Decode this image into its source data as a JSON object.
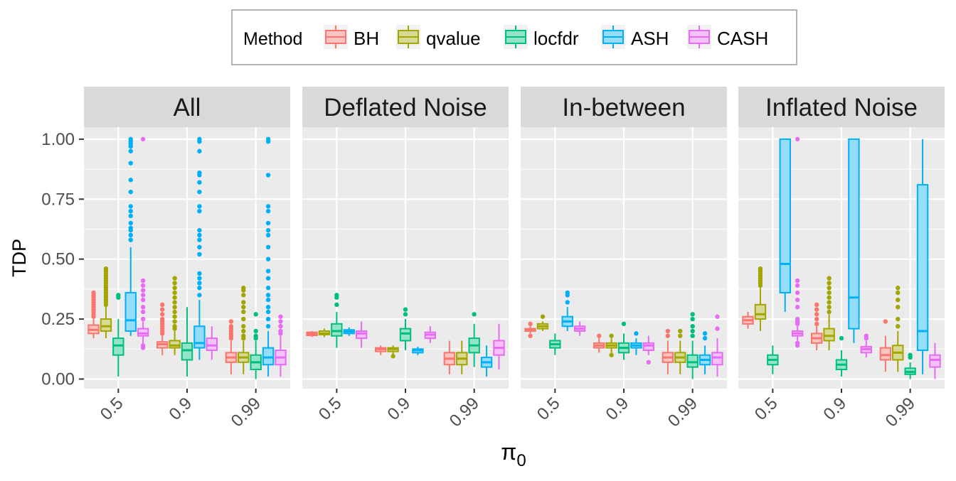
{
  "chart_data": {
    "type": "box",
    "legend": {
      "title": "Method",
      "position": "top",
      "entries": [
        {
          "name": "BH",
          "color": "#F8766D"
        },
        {
          "name": "qvalue",
          "color": "#A3A500"
        },
        {
          "name": "locfdr",
          "color": "#00BF7D"
        },
        {
          "name": "ASH",
          "color": "#00B0F6"
        },
        {
          "name": "CASH",
          "color": "#E76BF3"
        }
      ]
    },
    "ylabel": "TDP",
    "xlabel_symbol": "π",
    "xlabel_subscript": "0",
    "ylim": [
      -0.04,
      1.05
    ],
    "yticks": [
      "0.00",
      "0.25",
      "0.50",
      "0.75",
      "1.00"
    ],
    "ytick_values": [
      0,
      0.25,
      0.5,
      0.75,
      1.0
    ],
    "x_categories": [
      "0.5",
      "0.9",
      "0.99"
    ],
    "grid": true,
    "panels": [
      {
        "title": "All",
        "boxes": [
          {
            "x": "0.5",
            "method": "BH",
            "min": 0.17,
            "q1": 0.19,
            "median": 0.205,
            "q3": 0.225,
            "max": 0.25,
            "outliers": [
              0.26,
              0.27,
              0.28,
              0.29,
              0.3,
              0.31,
              0.32,
              0.33,
              0.34,
              0.35,
              0.36
            ]
          },
          {
            "x": "0.5",
            "method": "qvalue",
            "min": 0.17,
            "q1": 0.2,
            "median": 0.22,
            "q3": 0.25,
            "max": 0.3,
            "outliers": [
              0.31,
              0.32,
              0.33,
              0.34,
              0.35,
              0.36,
              0.37,
              0.38,
              0.39,
              0.4,
              0.41,
              0.42,
              0.43,
              0.44,
              0.45,
              0.46
            ]
          },
          {
            "x": "0.5",
            "method": "locfdr",
            "min": 0.01,
            "q1": 0.1,
            "median": 0.14,
            "q3": 0.17,
            "max": 0.25,
            "outliers": [
              0.34,
              0.35
            ]
          },
          {
            "x": "0.5",
            "method": "ASH",
            "min": 0.18,
            "q1": 0.2,
            "median": 0.245,
            "q3": 0.36,
            "max": 0.55,
            "outliers": [
              0.58,
              0.6,
              0.62,
              0.63,
              0.65,
              0.68,
              0.7,
              0.72,
              0.78,
              0.83,
              0.9,
              0.95,
              0.97,
              0.98,
              0.99,
              1.0
            ]
          },
          {
            "x": "0.5",
            "method": "CASH",
            "min": 0.13,
            "q1": 0.18,
            "median": 0.19,
            "q3": 0.21,
            "max": 0.24,
            "outliers": [
              0.13,
              0.14,
              0.25,
              0.28,
              0.3,
              0.33,
              0.35,
              0.37,
              0.39,
              0.41,
              1.0
            ]
          },
          {
            "x": "0.9",
            "method": "BH",
            "min": 0.1,
            "q1": 0.13,
            "median": 0.145,
            "q3": 0.155,
            "max": 0.18,
            "outliers": [
              0.19,
              0.2,
              0.21,
              0.22,
              0.23,
              0.24,
              0.25,
              0.27,
              0.29,
              0.31
            ]
          },
          {
            "x": "0.9",
            "method": "qvalue",
            "min": 0.1,
            "q1": 0.13,
            "median": 0.14,
            "q3": 0.16,
            "max": 0.2,
            "outliers": [
              0.21,
              0.22,
              0.24,
              0.26,
              0.28,
              0.3,
              0.32,
              0.34,
              0.36,
              0.38,
              0.4,
              0.42
            ]
          },
          {
            "x": "0.9",
            "method": "locfdr",
            "min": 0.01,
            "q1": 0.08,
            "median": 0.12,
            "q3": 0.15,
            "max": 0.3,
            "outliers": []
          },
          {
            "x": "0.9",
            "method": "ASH",
            "min": 0.08,
            "q1": 0.13,
            "median": 0.15,
            "q3": 0.22,
            "max": 0.33,
            "outliers": [
              0.35,
              0.38,
              0.4,
              0.42,
              0.44,
              0.52,
              0.55,
              0.58,
              0.6,
              0.62,
              0.7,
              0.72,
              0.78,
              0.82,
              0.85,
              0.86,
              0.95,
              0.99,
              1.0
            ]
          },
          {
            "x": "0.9",
            "method": "CASH",
            "min": 0.08,
            "q1": 0.12,
            "median": 0.14,
            "q3": 0.17,
            "max": 0.22,
            "outliers": []
          },
          {
            "x": "0.99",
            "method": "BH",
            "min": 0.02,
            "q1": 0.07,
            "median": 0.09,
            "q3": 0.11,
            "max": 0.16,
            "outliers": [
              0.17,
              0.18,
              0.19,
              0.2,
              0.21,
              0.22,
              0.24
            ]
          },
          {
            "x": "0.99",
            "method": "qvalue",
            "min": 0.02,
            "q1": 0.07,
            "median": 0.09,
            "q3": 0.11,
            "max": 0.16,
            "outliers": [
              0.17,
              0.18,
              0.2,
              0.22,
              0.25,
              0.28,
              0.3,
              0.32,
              0.35,
              0.37,
              0.38
            ]
          },
          {
            "x": "0.99",
            "method": "locfdr",
            "min": 0.0,
            "q1": 0.04,
            "median": 0.07,
            "q3": 0.1,
            "max": 0.16,
            "outliers": [
              0.17,
              0.18,
              0.2,
              0.27
            ]
          },
          {
            "x": "0.99",
            "method": "ASH",
            "min": 0.01,
            "q1": 0.06,
            "median": 0.09,
            "q3": 0.13,
            "max": 0.2,
            "outliers": [
              0.22,
              0.25,
              0.28,
              0.3,
              0.33,
              0.35,
              0.38,
              0.42,
              0.45,
              0.5,
              0.55,
              0.6,
              0.62,
              0.65,
              0.7,
              0.72,
              0.85,
              0.99,
              1.0
            ]
          },
          {
            "x": "0.99",
            "method": "CASH",
            "min": 0.01,
            "q1": 0.06,
            "median": 0.09,
            "q3": 0.12,
            "max": 0.18,
            "outliers": [
              0.19,
              0.2,
              0.22,
              0.24,
              0.26
            ]
          }
        ]
      },
      {
        "title": "Deflated Noise",
        "boxes": [
          {
            "x": "0.5",
            "method": "BH",
            "min": 0.175,
            "q1": 0.182,
            "median": 0.188,
            "q3": 0.195,
            "max": 0.2,
            "outliers": []
          },
          {
            "x": "0.5",
            "method": "qvalue",
            "min": 0.175,
            "q1": 0.185,
            "median": 0.19,
            "q3": 0.2,
            "max": 0.21,
            "outliers": []
          },
          {
            "x": "0.5",
            "method": "locfdr",
            "min": 0.13,
            "q1": 0.18,
            "median": 0.2,
            "q3": 0.23,
            "max": 0.28,
            "outliers": [
              0.31,
              0.34,
              0.35
            ]
          },
          {
            "x": "0.5",
            "method": "ASH",
            "min": 0.18,
            "q1": 0.19,
            "median": 0.198,
            "q3": 0.205,
            "max": 0.215,
            "outliers": []
          },
          {
            "x": "0.5",
            "method": "CASH",
            "min": 0.13,
            "q1": 0.17,
            "median": 0.19,
            "q3": 0.2,
            "max": 0.24,
            "outliers": []
          },
          {
            "x": "0.9",
            "method": "BH",
            "min": 0.1,
            "q1": 0.115,
            "median": 0.125,
            "q3": 0.13,
            "max": 0.14,
            "outliers": []
          },
          {
            "x": "0.9",
            "method": "qvalue",
            "min": 0.1,
            "q1": 0.115,
            "median": 0.125,
            "q3": 0.13,
            "max": 0.14,
            "outliers": [
              0.095
            ]
          },
          {
            "x": "0.9",
            "method": "locfdr",
            "min": 0.12,
            "q1": 0.16,
            "median": 0.19,
            "q3": 0.21,
            "max": 0.25,
            "outliers": [
              0.27,
              0.29
            ]
          },
          {
            "x": "0.9",
            "method": "ASH",
            "min": 0.1,
            "q1": 0.11,
            "median": 0.12,
            "q3": 0.125,
            "max": 0.135,
            "outliers": []
          },
          {
            "x": "0.9",
            "method": "CASH",
            "min": 0.15,
            "q1": 0.17,
            "median": 0.185,
            "q3": 0.195,
            "max": 0.22,
            "outliers": []
          },
          {
            "x": "0.99",
            "method": "BH",
            "min": 0.02,
            "q1": 0.06,
            "median": 0.085,
            "q3": 0.11,
            "max": 0.16,
            "outliers": []
          },
          {
            "x": "0.99",
            "method": "qvalue",
            "min": 0.02,
            "q1": 0.06,
            "median": 0.085,
            "q3": 0.11,
            "max": 0.16,
            "outliers": []
          },
          {
            "x": "0.99",
            "method": "locfdr",
            "min": 0.05,
            "q1": 0.11,
            "median": 0.14,
            "q3": 0.17,
            "max": 0.23,
            "outliers": [
              0.27
            ]
          },
          {
            "x": "0.99",
            "method": "ASH",
            "min": 0.01,
            "q1": 0.05,
            "median": 0.07,
            "q3": 0.09,
            "max": 0.14,
            "outliers": []
          },
          {
            "x": "0.99",
            "method": "CASH",
            "min": 0.04,
            "q1": 0.1,
            "median": 0.13,
            "q3": 0.16,
            "max": 0.23,
            "outliers": []
          }
        ]
      },
      {
        "title": "In-between",
        "boxes": [
          {
            "x": "0.5",
            "method": "BH",
            "min": 0.19,
            "q1": 0.2,
            "median": 0.205,
            "q3": 0.21,
            "max": 0.22,
            "outliers": [
              0.18,
              0.23
            ]
          },
          {
            "x": "0.5",
            "method": "qvalue",
            "min": 0.2,
            "q1": 0.21,
            "median": 0.22,
            "q3": 0.23,
            "max": 0.24,
            "outliers": [
              0.26
            ]
          },
          {
            "x": "0.5",
            "method": "locfdr",
            "min": 0.1,
            "q1": 0.13,
            "median": 0.145,
            "q3": 0.16,
            "max": 0.19,
            "outliers": []
          },
          {
            "x": "0.5",
            "method": "ASH",
            "min": 0.2,
            "q1": 0.22,
            "median": 0.24,
            "q3": 0.26,
            "max": 0.3,
            "outliers": [
              0.32,
              0.35,
              0.36
            ]
          },
          {
            "x": "0.5",
            "method": "CASH",
            "min": 0.18,
            "q1": 0.2,
            "median": 0.21,
            "q3": 0.22,
            "max": 0.24,
            "outliers": []
          },
          {
            "x": "0.9",
            "method": "BH",
            "min": 0.11,
            "q1": 0.13,
            "median": 0.14,
            "q3": 0.15,
            "max": 0.17,
            "outliers": [
              0.18
            ]
          },
          {
            "x": "0.9",
            "method": "qvalue",
            "min": 0.11,
            "q1": 0.13,
            "median": 0.14,
            "q3": 0.15,
            "max": 0.17,
            "outliers": [
              0.1,
              0.18
            ]
          },
          {
            "x": "0.9",
            "method": "locfdr",
            "min": 0.08,
            "q1": 0.11,
            "median": 0.13,
            "q3": 0.15,
            "max": 0.19,
            "outliers": [
              0.23
            ]
          },
          {
            "x": "0.9",
            "method": "ASH",
            "min": 0.1,
            "q1": 0.13,
            "median": 0.14,
            "q3": 0.15,
            "max": 0.17,
            "outliers": [
              0.19
            ]
          },
          {
            "x": "0.9",
            "method": "CASH",
            "min": 0.1,
            "q1": 0.12,
            "median": 0.14,
            "q3": 0.15,
            "max": 0.18,
            "outliers": [
              0.07
            ]
          },
          {
            "x": "0.99",
            "method": "BH",
            "min": 0.02,
            "q1": 0.07,
            "median": 0.09,
            "q3": 0.11,
            "max": 0.16,
            "outliers": [
              0.18,
              0.2
            ]
          },
          {
            "x": "0.99",
            "method": "qvalue",
            "min": 0.02,
            "q1": 0.07,
            "median": 0.09,
            "q3": 0.11,
            "max": 0.16,
            "outliers": [
              0.18,
              0.2
            ]
          },
          {
            "x": "0.99",
            "method": "locfdr",
            "min": 0.0,
            "q1": 0.05,
            "median": 0.07,
            "q3": 0.1,
            "max": 0.16,
            "outliers": [
              0.18,
              0.2,
              0.22,
              0.25,
              0.27
            ]
          },
          {
            "x": "0.99",
            "method": "ASH",
            "min": 0.02,
            "q1": 0.06,
            "median": 0.08,
            "q3": 0.1,
            "max": 0.14,
            "outliers": [
              0.17,
              0.19
            ]
          },
          {
            "x": "0.99",
            "method": "CASH",
            "min": 0.01,
            "q1": 0.06,
            "median": 0.09,
            "q3": 0.11,
            "max": 0.17,
            "outliers": [
              0.21,
              0.26
            ]
          }
        ]
      },
      {
        "title": "Inflated Noise",
        "boxes": [
          {
            "x": "0.5",
            "method": "BH",
            "min": 0.21,
            "q1": 0.23,
            "median": 0.245,
            "q3": 0.26,
            "max": 0.28,
            "outliers": []
          },
          {
            "x": "0.5",
            "method": "qvalue",
            "min": 0.2,
            "q1": 0.25,
            "median": 0.27,
            "q3": 0.31,
            "max": 0.38,
            "outliers": [
              0.39,
              0.4,
              0.41,
              0.42,
              0.43,
              0.44,
              0.45,
              0.46
            ]
          },
          {
            "x": "0.5",
            "method": "locfdr",
            "min": 0.02,
            "q1": 0.06,
            "median": 0.08,
            "q3": 0.1,
            "max": 0.14,
            "outliers": []
          },
          {
            "x": "0.5",
            "method": "ASH",
            "min": 0.28,
            "q1": 0.36,
            "median": 0.48,
            "q3": 1.0,
            "max": 1.0,
            "outliers": []
          },
          {
            "x": "0.5",
            "method": "CASH",
            "min": 0.16,
            "q1": 0.18,
            "median": 0.19,
            "q3": 0.2,
            "max": 0.22,
            "outliers": [
              0.14,
              0.15,
              0.23,
              0.24,
              0.25,
              0.3,
              0.33,
              0.36,
              0.39,
              0.41,
              1.0
            ]
          },
          {
            "x": "0.9",
            "method": "BH",
            "min": 0.12,
            "q1": 0.15,
            "median": 0.17,
            "q3": 0.19,
            "max": 0.22,
            "outliers": [
              0.23,
              0.25,
              0.27,
              0.29,
              0.31
            ]
          },
          {
            "x": "0.9",
            "method": "qvalue",
            "min": 0.12,
            "q1": 0.16,
            "median": 0.18,
            "q3": 0.21,
            "max": 0.27,
            "outliers": [
              0.28,
              0.3,
              0.32,
              0.34,
              0.36,
              0.38,
              0.4,
              0.42
            ]
          },
          {
            "x": "0.9",
            "method": "locfdr",
            "min": 0.01,
            "q1": 0.04,
            "median": 0.06,
            "q3": 0.08,
            "max": 0.12,
            "outliers": [
              0.17
            ]
          },
          {
            "x": "0.9",
            "method": "ASH",
            "min": 0.15,
            "q1": 0.21,
            "median": 0.34,
            "q3": 1.0,
            "max": 1.0,
            "outliers": []
          },
          {
            "x": "0.9",
            "method": "CASH",
            "min": 0.09,
            "q1": 0.11,
            "median": 0.125,
            "q3": 0.135,
            "max": 0.16,
            "outliers": [
              0.17,
              0.18
            ]
          },
          {
            "x": "0.99",
            "method": "BH",
            "min": 0.03,
            "q1": 0.08,
            "median": 0.1,
            "q3": 0.13,
            "max": 0.18,
            "outliers": [
              0.24
            ]
          },
          {
            "x": "0.99",
            "method": "qvalue",
            "min": 0.03,
            "q1": 0.08,
            "median": 0.11,
            "q3": 0.14,
            "max": 0.2,
            "outliers": [
              0.22,
              0.25,
              0.3,
              0.33,
              0.36,
              0.38
            ]
          },
          {
            "x": "0.99",
            "method": "locfdr",
            "min": 0.0,
            "q1": 0.02,
            "median": 0.03,
            "q3": 0.045,
            "max": 0.07,
            "outliers": [
              0.09,
              0.1
            ]
          },
          {
            "x": "0.99",
            "method": "ASH",
            "min": 0.02,
            "q1": 0.12,
            "median": 0.2,
            "q3": 0.81,
            "max": 1.0,
            "outliers": []
          },
          {
            "x": "0.99",
            "method": "CASH",
            "min": 0.0,
            "q1": 0.05,
            "median": 0.08,
            "q3": 0.1,
            "max": 0.15,
            "outliers": []
          }
        ]
      }
    ]
  }
}
